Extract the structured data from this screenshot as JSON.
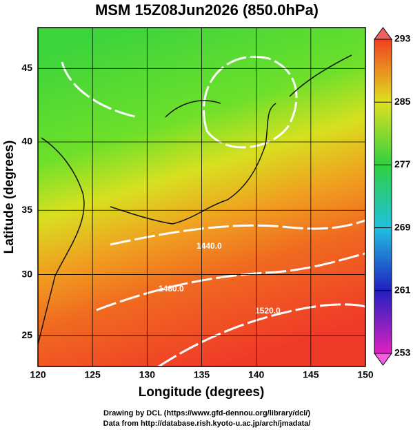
{
  "chart_data": {
    "type": "map",
    "title": "MSM 15Z08Jun2026 (850.0hPa)",
    "xlabel": "Longitude (degrees)",
    "ylabel": "Latitude  (degrees)",
    "xlim": [
      120,
      150
    ],
    "xticks": [
      120,
      125,
      130,
      135,
      140,
      145,
      150
    ],
    "ylim": [
      22.4,
      47.6
    ],
    "yticks": [
      25,
      30,
      35,
      40,
      45
    ],
    "projection": "mercator",
    "grid": true,
    "colorbar": {
      "lim": [
        253,
        293
      ],
      "ticks": [
        253,
        261,
        269,
        277,
        285,
        293
      ]
    },
    "contour_labels": [
      "1440.0",
      "1480.0",
      "1520.0"
    ],
    "footer": [
      "Drawing by DCL (https://www.gfd-dennou.org/library/dcl/)",
      "Data from http://database.rish.kyoto-u.ac.jp/arch/jmadata/"
    ]
  }
}
